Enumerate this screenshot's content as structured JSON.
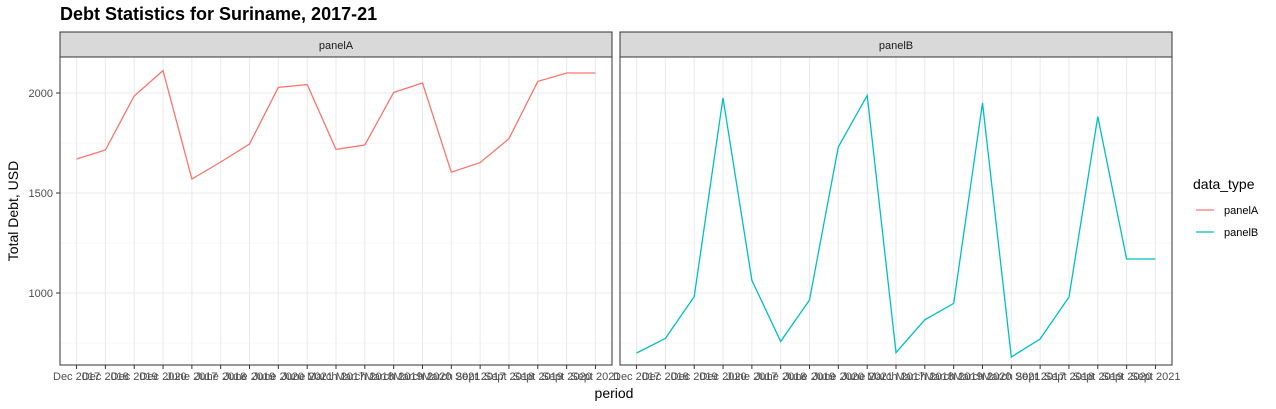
{
  "colors": {
    "panelA": "#F8766D",
    "panelB": "#00BFC4"
  },
  "chart_data": {
    "type": "line",
    "title": "Debt Statistics for Suriname, 2017-21",
    "xlabel": "period",
    "ylabel": "Total Debt, USD",
    "ylim": [
      640,
      2180
    ],
    "y_ticks": [
      1000,
      1500,
      2000
    ],
    "grid": true,
    "x_tick_labels": [
      "Dec 2017",
      "Dec 2018",
      "Dec 2019",
      "Dec 2020",
      "June 2017",
      "June 2018",
      "June 2019",
      "June 2020",
      "June 2021",
      "March 2017",
      "March 2018",
      "March 2019",
      "March 2020",
      "March 2021",
      "Sept 2017",
      "Sept 2018",
      "Sept 2019",
      "Sept 2020",
      "Sept 2021"
    ],
    "legend": {
      "title": "data_type",
      "position": "right",
      "entries": [
        "panelA",
        "panelB"
      ]
    },
    "panels": [
      {
        "strip": "panelA",
        "series": "panelA",
        "values": [
          1670,
          1715,
          1985,
          2112,
          1570,
          1655,
          1745,
          2028,
          2042,
          1718,
          1740,
          2003,
          2050,
          1604,
          1652,
          1772,
          2058,
          2100,
          2100
        ]
      },
      {
        "strip": "panelB",
        "series": "panelB",
        "values": [
          700,
          773,
          982,
          1975,
          1063,
          758,
          965,
          1730,
          1988,
          702,
          866,
          948,
          1950,
          680,
          770,
          980,
          1882,
          1170,
          1170
        ]
      }
    ]
  }
}
